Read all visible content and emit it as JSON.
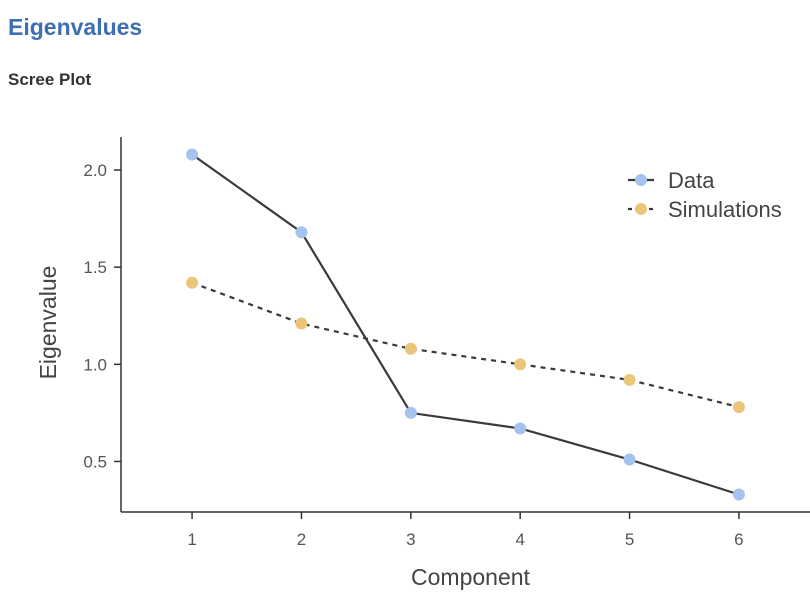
{
  "header": {
    "section_title": "Eigenvalues",
    "plot_title": "Scree Plot"
  },
  "chart_data": {
    "type": "line",
    "x": [
      1,
      2,
      3,
      4,
      5,
      6
    ],
    "xlabel": "Component",
    "ylabel": "Eigenvalue",
    "ylim": [
      0.24,
      2.17
    ],
    "xlim": [
      0.35,
      6.65
    ],
    "yticks": [
      "0.5",
      "1.0",
      "1.5",
      "2.0"
    ],
    "xticks": [
      "1",
      "2",
      "3",
      "4",
      "5",
      "6"
    ],
    "grid": false,
    "legend_position": "top-right",
    "series": [
      {
        "name": "Data",
        "values": [
          2.08,
          1.68,
          0.75,
          0.67,
          0.51,
          0.33
        ],
        "line_style": "solid",
        "line_color": "#3a3a3a",
        "marker_color": "#a4c3ee"
      },
      {
        "name": "Simulations",
        "values": [
          1.42,
          1.21,
          1.08,
          1.0,
          0.92,
          0.78
        ],
        "line_style": "dashed",
        "line_color": "#3a3a3a",
        "marker_color": "#ebc57a"
      }
    ]
  }
}
